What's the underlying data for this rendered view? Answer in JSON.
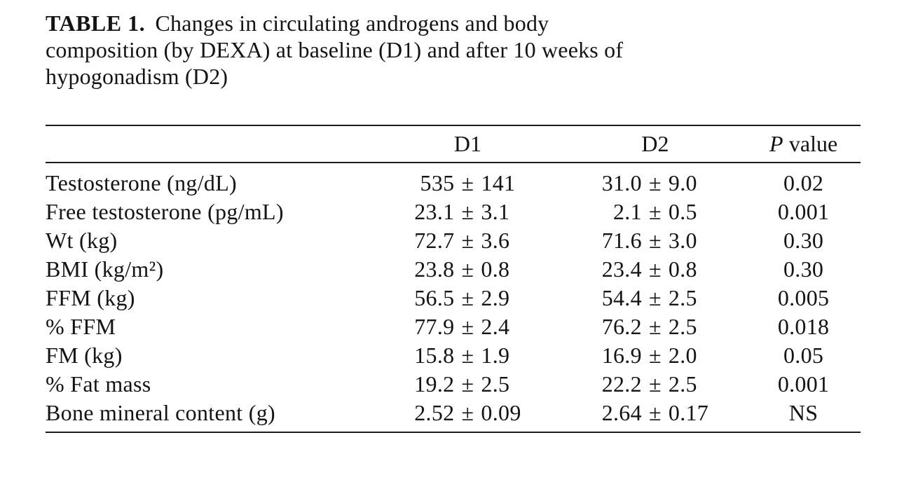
{
  "caption": {
    "label": "TABLE 1.",
    "line1_rest": "Changes in circulating androgens and body",
    "line2": "composition (by DEXA) at baseline (D1) and after 10 weeks of",
    "line3": "hypogonadism (D2)"
  },
  "table": {
    "columns": [
      "",
      "D1",
      "D2",
      "P value"
    ],
    "p_header": {
      "symbol": "P",
      "word": "value"
    },
    "rows": [
      {
        "label": "Testosterone (ng/dL)",
        "d1": "535 ± 141",
        "d2": "31.0 ± 9.0",
        "p": "0.02"
      },
      {
        "label": "Free testosterone (pg/mL)",
        "d1": "23.1 ± 3.1",
        "d2": "2.1 ± 0.5",
        "p": "0.001"
      },
      {
        "label": "Wt (kg)",
        "d1": "72.7 ± 3.6",
        "d2": "71.6 ± 3.0",
        "p": "0.30"
      },
      {
        "label": "BMI (kg/m²)",
        "d1": "23.8 ± 0.8",
        "d2": "23.4 ± 0.8",
        "p": "0.30"
      },
      {
        "label": "FFM (kg)",
        "d1": "56.5 ± 2.9",
        "d2": "54.4 ± 2.5",
        "p": "0.005"
      },
      {
        "label": "% FFM",
        "d1": "77.9 ± 2.4",
        "d2": "76.2 ± 2.5",
        "p": "0.018"
      },
      {
        "label": "FM (kg)",
        "d1": "15.8 ± 1.9",
        "d2": "16.9 ± 2.0",
        "p": "0.05"
      },
      {
        "label": "% Fat mass",
        "d1": "19.2 ± 2.5",
        "d2": "22.2 ± 2.5",
        "p": "0.001"
      },
      {
        "label": "Bone mineral content (g)",
        "d1": "2.52 ± 0.09",
        "d2": "2.64 ± 0.17",
        "p": "NS"
      }
    ],
    "colors": {
      "text": "#141414",
      "rule": "#1a1a1a",
      "background": "#ffffff"
    }
  }
}
